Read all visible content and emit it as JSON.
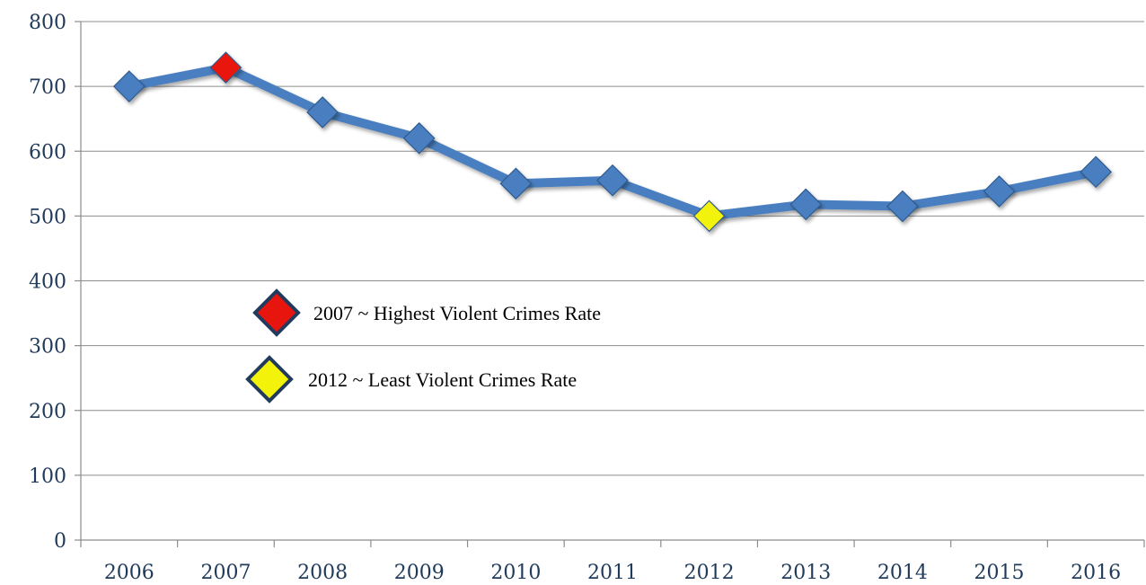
{
  "chart_data": {
    "type": "line",
    "title": "",
    "xlabel": "",
    "ylabel": "",
    "x": [
      "2006",
      "2007",
      "2008",
      "2009",
      "2010",
      "2011",
      "2012",
      "2013",
      "2014",
      "2015",
      "2016"
    ],
    "series": [
      {
        "values": [
          700,
          729,
          660,
          620,
          550,
          555,
          500,
          518,
          515,
          538,
          568
        ]
      }
    ],
    "ylim": [
      0,
      800
    ],
    "yticks": [
      "0",
      "100",
      "200",
      "300",
      "400",
      "500",
      "600",
      "700",
      "800"
    ],
    "grid": true,
    "legend": "none",
    "highlights": [
      {
        "category": "2007",
        "color": "#e8140e",
        "label": "2007 ~ Highest Violent Crimes Rate"
      },
      {
        "category": "2012",
        "color": "#f2f20a",
        "label": "2012 ~ Least Violent Crimes Rate"
      }
    ],
    "colors": {
      "line": "#4a7fc0",
      "marker": "#4a7fc0",
      "marker_outline": "#2f5a8e",
      "annotation_outline": "#223a5c"
    }
  }
}
